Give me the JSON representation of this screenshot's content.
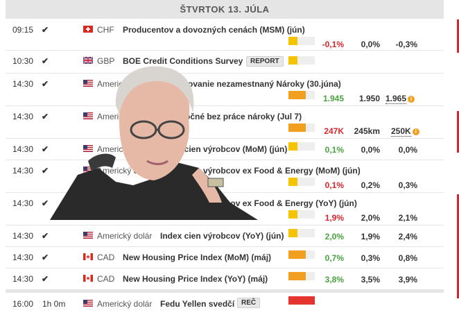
{
  "header": {
    "day": "ŠTVRTOK 13. JÚLA"
  },
  "rows": [
    {
      "time": "09:15",
      "check": "✔",
      "currency": "CHF",
      "event": "Producentov a dovozných cenách (MSM) (jún)",
      "actual": "-0,1%",
      "forecast": "0,0%",
      "previous": "-0,3%",
      "impact": "low",
      "impact_fraction": 0.33
    },
    {
      "time": "10:30",
      "check": "✔",
      "currency": "GBP",
      "event": "BOE Credit Conditions Survey",
      "badge": "REPORT",
      "impact": "low",
      "impact_fraction": 0.33
    },
    {
      "time": "14:30",
      "check": "✔",
      "currency": "Americký dolár",
      "event": "Pokračovanie nezamestnaný Nároky (30.júna)",
      "actual": "1.945",
      "forecast": "1.950",
      "previous": "1.965",
      "impact": "medium",
      "impact_fraction": 0.66
    },
    {
      "time": "14:30",
      "check": "✔",
      "currency": "Americký dolár",
      "event": "Počiatočné bez práce nároky (Jul 7)",
      "actual": "247K",
      "forecast": "245km",
      "previous": "250K",
      "impact": "medium",
      "impact_fraction": 0.66
    },
    {
      "time": "14:30",
      "check": "✔",
      "currency": "Americký dolár",
      "event": "Index cien výrobcov (MoM) (jún)",
      "actual": "0,1%",
      "forecast": "0,0%",
      "previous": "0,0%",
      "impact": "low",
      "impact_fraction": 0.33
    },
    {
      "time": "14:30",
      "check": "✔",
      "currency": "Americký dolár",
      "event": "Index cien výrobcov ex Food & Energy (MoM) (jún)",
      "actual": "0,1%",
      "forecast": "0,2%",
      "previous": "0,3%",
      "impact": "low",
      "impact_fraction": 0.33
    },
    {
      "time": "14:30",
      "check": "✔",
      "currency": "Americký dolár",
      "event": "Index cien výrobcov ex Food & Energy (YoY) (jún)",
      "actual": "1,9%",
      "forecast": "2,0%",
      "previous": "2,1%",
      "impact": "low",
      "impact_fraction": 0.33
    },
    {
      "time": "14:30",
      "check": "✔",
      "currency": "Americký dolár",
      "event": "Index cien výrobcov (YoY) (jún)",
      "actual": "2,0%",
      "forecast": "1,9%",
      "previous": "2,4%",
      "impact": "low",
      "impact_fraction": 0.33
    },
    {
      "time": "14:30",
      "check": "✔",
      "currency": "CAD",
      "event": "New Housing Price Index (MoM) (máj)",
      "actual": "0,7%",
      "forecast": "0,3%",
      "previous": "0,8%",
      "impact": "medium",
      "impact_fraction": 0.66
    },
    {
      "time": "14:30",
      "check": "✔",
      "currency": "CAD",
      "event": "New Housing Price Index (YoY) (máj)",
      "actual": "3,8%",
      "forecast": "3,5%",
      "previous": "3,9%",
      "impact": "medium",
      "impact_fraction": 0.66
    },
    {
      "time": "16:00",
      "duration": "1h 0m",
      "currency": "Americký dolár",
      "event": "Fedu Yellen svedčí",
      "badge": "REČ",
      "impact": "high",
      "impact_fraction": 1.0
    }
  ],
  "colors": {
    "low": "#f5c400",
    "medium": "#f0a01e",
    "high": "#e3342f",
    "up": "#4aa241",
    "down": "#d7262b"
  },
  "icons": {
    "check": "check-icon",
    "info": "info-icon",
    "flags": [
      "ch-flag-icon",
      "gb-flag-icon",
      "us-flag-icon",
      "ca-flag-icon"
    ]
  }
}
